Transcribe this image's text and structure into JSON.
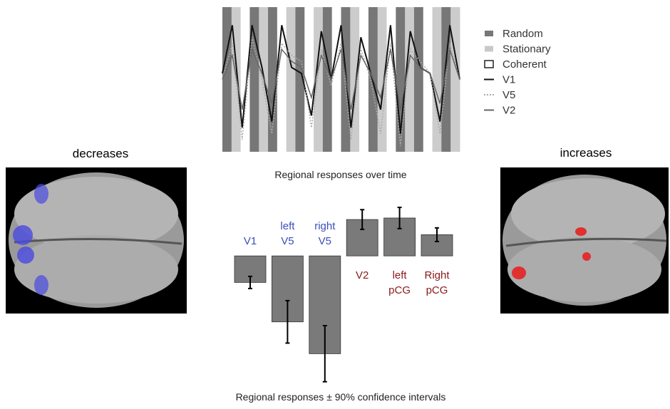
{
  "headings": {
    "left": "decreases",
    "right": "increases"
  },
  "chart_data": [
    {
      "type": "line",
      "title": "Regional responses over time",
      "ylim": [
        -1.2,
        1.2
      ],
      "conditions": [
        {
          "name": "Random",
          "color": "#777777",
          "style": "fill"
        },
        {
          "name": "Stationary",
          "color": "#c8c8c8",
          "style": "fill"
        },
        {
          "name": "Coherent",
          "color": "#222222",
          "style": "outline"
        }
      ],
      "series": [
        {
          "name": "V1",
          "color": "#111111",
          "dash": "none",
          "values": [
            0.1,
            0.9,
            -0.8,
            0.9,
            0.2,
            -0.7,
            0.9,
            0.2,
            0.1,
            -0.6,
            0.8,
            0.0,
            0.9,
            -0.8,
            0.7,
            0.1,
            -0.5,
            0.9,
            -0.9,
            0.8,
            0.2,
            0.1,
            -0.7,
            0.9,
            0.0
          ]
        },
        {
          "name": "V5",
          "color": "#aaaaaa",
          "dash": "2,2",
          "values": [
            0.0,
            0.6,
            -1.0,
            0.7,
            0.0,
            -0.9,
            0.6,
            0.4,
            0.3,
            -0.8,
            0.5,
            -0.1,
            0.6,
            -1.0,
            0.5,
            0.0,
            -0.9,
            0.6,
            -1.1,
            0.5,
            0.3,
            0.1,
            -0.9,
            0.6,
            0.0
          ]
        },
        {
          "name": "V2",
          "color": "#666666",
          "dash": "none",
          "values": [
            0.0,
            0.4,
            -0.5,
            0.5,
            0.1,
            -0.4,
            0.5,
            0.3,
            0.2,
            -0.3,
            0.4,
            0.0,
            0.5,
            -0.5,
            0.4,
            0.1,
            -0.3,
            0.5,
            -0.5,
            0.4,
            0.2,
            0.1,
            -0.4,
            0.5,
            0.0
          ]
        }
      ]
    },
    {
      "type": "bar",
      "title": "Regional responses ± 90% confidence intervals",
      "categories": [
        "V1",
        "left V5",
        "right V5",
        "V2",
        "left pCG",
        "Right pCG"
      ],
      "label_colors": [
        "#3b4fb8",
        "#3b4fb8",
        "#3b4fb8",
        "#8b1a1a",
        "#8b1a1a",
        "#8b1a1a"
      ],
      "values": [
        -0.35,
        -0.87,
        -1.29,
        0.48,
        0.5,
        0.28
      ],
      "errors": [
        0.08,
        0.28,
        0.37,
        0.13,
        0.14,
        0.09
      ],
      "color": "#7a7a7a",
      "ylim": [
        -1.7,
        0.65
      ]
    }
  ]
}
